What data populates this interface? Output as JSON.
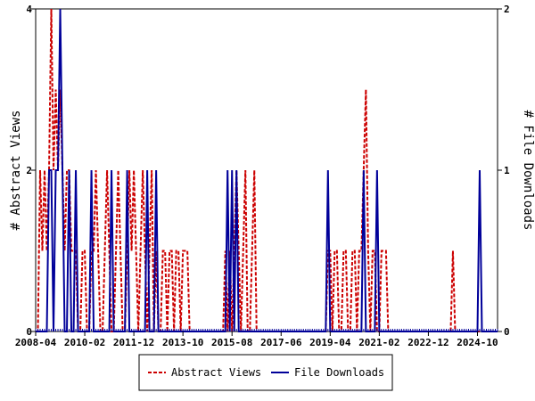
{
  "chart_data": {
    "type": "line",
    "title": "",
    "xlabel": "",
    "ylabel_left": "# Abstract Views",
    "ylabel_right": "# File Downloads",
    "x_tick_labels": [
      "2008-04",
      "2010-02",
      "2011-12",
      "2013-10",
      "2015-08",
      "2017-06",
      "2019-04",
      "2021-02",
      "2022-12",
      "2024-10"
    ],
    "x_range": [
      "2008-04",
      "2025-07"
    ],
    "ylim_left": [
      0,
      4
    ],
    "ylim_right": [
      0,
      2
    ],
    "yticks_left": [
      "0",
      "2",
      "4"
    ],
    "yticks_right": [
      "0",
      "1",
      "2"
    ],
    "legend_position": "bottom-center",
    "series": [
      {
        "name": "Abstract Views",
        "axis": "left",
        "color": "#cc0000",
        "style": "dashed",
        "points": [
          [
            "2008-04",
            0
          ],
          [
            "2008-06",
            2
          ],
          [
            "2008-07",
            1
          ],
          [
            "2008-08",
            2
          ],
          [
            "2008-09",
            1
          ],
          [
            "2008-10",
            2
          ],
          [
            "2008-11",
            4
          ],
          [
            "2008-12",
            2
          ],
          [
            "2009-01",
            3
          ],
          [
            "2009-02",
            2
          ],
          [
            "2009-03",
            3
          ],
          [
            "2009-04",
            2
          ],
          [
            "2009-05",
            1
          ],
          [
            "2009-06",
            2
          ],
          [
            "2009-07",
            2
          ],
          [
            "2009-08",
            1
          ],
          [
            "2009-09",
            1
          ],
          [
            "2009-10",
            1
          ],
          [
            "2009-11",
            0
          ],
          [
            "2010-01",
            1
          ],
          [
            "2010-02",
            1
          ],
          [
            "2010-03",
            0
          ],
          [
            "2010-05",
            1
          ],
          [
            "2010-06",
            1
          ],
          [
            "2010-07",
            2
          ],
          [
            "2010-08",
            1
          ],
          [
            "2010-09",
            0
          ],
          [
            "2010-10",
            0
          ],
          [
            "2010-11",
            1
          ],
          [
            "2010-12",
            2
          ],
          [
            "2011-01",
            1
          ],
          [
            "2011-02",
            0
          ],
          [
            "2011-04",
            1
          ],
          [
            "2011-05",
            2
          ],
          [
            "2011-06",
            1
          ],
          [
            "2011-07",
            0
          ],
          [
            "2011-09",
            1
          ],
          [
            "2011-10",
            2
          ],
          [
            "2011-11",
            1
          ],
          [
            "2011-12",
            2
          ],
          [
            "2012-01",
            1
          ],
          [
            "2012-02",
            0
          ],
          [
            "2012-03",
            1
          ],
          [
            "2012-04",
            2
          ],
          [
            "2012-05",
            1
          ],
          [
            "2012-06",
            0
          ],
          [
            "2012-07",
            1
          ],
          [
            "2012-08",
            2
          ],
          [
            "2012-09",
            0
          ],
          [
            "2012-10",
            1
          ],
          [
            "2013-01",
            1
          ],
          [
            "2013-02",
            1
          ],
          [
            "2013-03",
            0
          ],
          [
            "2013-04",
            1
          ],
          [
            "2013-05",
            1
          ],
          [
            "2013-06",
            0
          ],
          [
            "2013-07",
            1
          ],
          [
            "2013-08",
            1
          ],
          [
            "2013-09",
            0
          ],
          [
            "2013-10",
            1
          ],
          [
            "2013-11",
            1
          ],
          [
            "2013-12",
            1
          ],
          [
            "2014-01",
            0
          ],
          [
            "2015-05",
            1
          ],
          [
            "2015-06",
            0
          ],
          [
            "2015-07",
            1
          ],
          [
            "2015-08",
            0
          ],
          [
            "2015-09",
            1
          ],
          [
            "2015-10",
            2
          ],
          [
            "2015-11",
            1
          ],
          [
            "2015-12",
            0
          ],
          [
            "2016-01",
            1
          ],
          [
            "2016-02",
            2
          ],
          [
            "2016-03",
            0
          ],
          [
            "2016-05",
            1
          ],
          [
            "2016-06",
            2
          ],
          [
            "2016-07",
            0
          ],
          [
            "2019-02",
            0
          ],
          [
            "2019-03",
            1
          ],
          [
            "2019-04",
            1
          ],
          [
            "2019-05",
            0
          ],
          [
            "2019-06",
            1
          ],
          [
            "2019-07",
            1
          ],
          [
            "2019-08",
            0
          ],
          [
            "2019-10",
            1
          ],
          [
            "2019-11",
            1
          ],
          [
            "2019-12",
            0
          ],
          [
            "2020-02",
            1
          ],
          [
            "2020-03",
            1
          ],
          [
            "2020-04",
            0
          ],
          [
            "2020-05",
            1
          ],
          [
            "2020-06",
            1
          ],
          [
            "2020-07",
            2
          ],
          [
            "2020-08",
            3
          ],
          [
            "2020-09",
            1
          ],
          [
            "2020-10",
            0
          ],
          [
            "2020-11",
            1
          ],
          [
            "2020-12",
            1
          ],
          [
            "2021-01",
            0
          ],
          [
            "2021-03",
            1
          ],
          [
            "2021-04",
            1
          ],
          [
            "2021-05",
            1
          ],
          [
            "2021-06",
            0
          ],
          [
            "2023-11",
            1
          ],
          [
            "2023-12",
            0
          ]
        ]
      },
      {
        "name": "File Downloads",
        "axis": "right",
        "color": "#000099",
        "style": "solid",
        "points": [
          [
            "2008-04",
            0
          ],
          [
            "2008-10",
            1
          ],
          [
            "2008-11",
            1
          ],
          [
            "2008-12",
            0
          ],
          [
            "2009-01",
            1
          ],
          [
            "2009-02",
            1
          ],
          [
            "2009-03",
            2
          ],
          [
            "2009-04",
            1
          ],
          [
            "2009-05",
            0
          ],
          [
            "2009-07",
            1
          ],
          [
            "2009-08",
            0
          ],
          [
            "2009-10",
            1
          ],
          [
            "2009-11",
            0
          ],
          [
            "2010-05",
            1
          ],
          [
            "2010-06",
            0
          ],
          [
            "2011-02",
            1
          ],
          [
            "2011-03",
            0
          ],
          [
            "2011-09",
            1
          ],
          [
            "2011-10",
            0
          ],
          [
            "2012-06",
            1
          ],
          [
            "2012-07",
            0
          ],
          [
            "2012-10",
            1
          ],
          [
            "2012-11",
            0
          ],
          [
            "2015-06",
            1
          ],
          [
            "2015-07",
            0
          ],
          [
            "2015-08",
            1
          ],
          [
            "2015-09",
            0
          ],
          [
            "2015-10",
            1
          ],
          [
            "2015-11",
            0
          ],
          [
            "2019-03",
            1
          ],
          [
            "2019-04",
            0
          ],
          [
            "2020-07",
            1
          ],
          [
            "2020-08",
            0
          ],
          [
            "2021-01",
            1
          ],
          [
            "2021-02",
            0
          ],
          [
            "2024-11",
            1
          ],
          [
            "2024-12",
            0
          ]
        ]
      }
    ]
  }
}
